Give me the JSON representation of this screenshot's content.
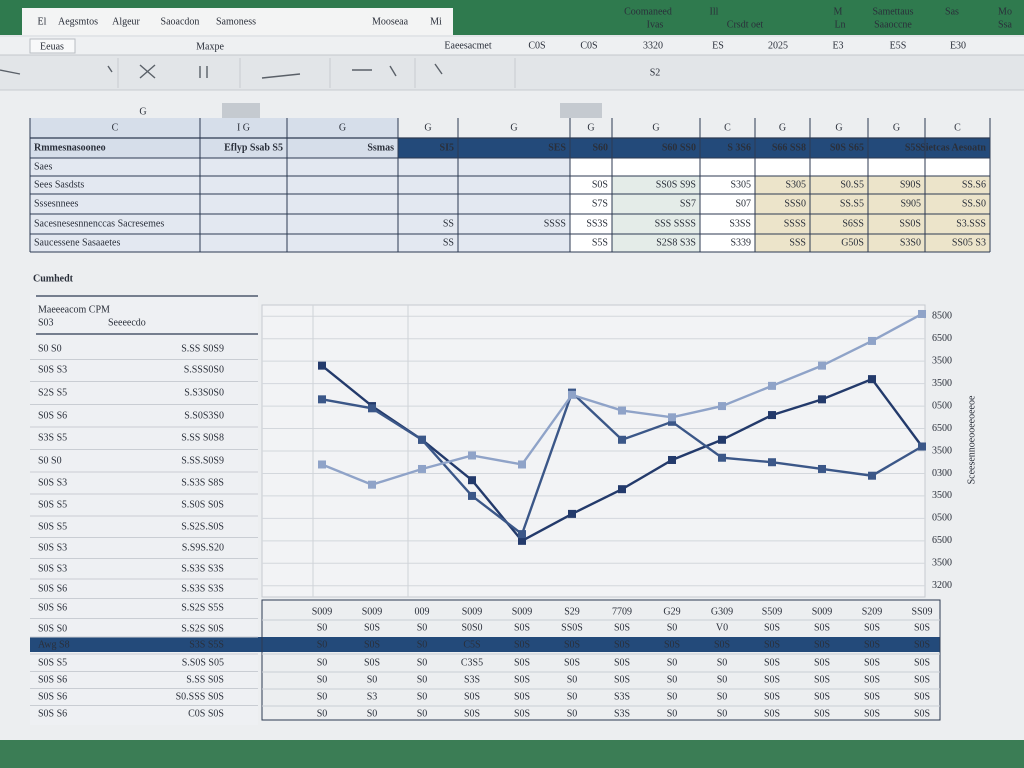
{
  "ribbon": {
    "tabs": [
      "El",
      "Aegsmtos",
      "Algeur",
      "Saoacdon",
      "Samoness",
      "Mooseaa",
      "Mi"
    ],
    "right_top": [
      "Coomaneed",
      "Ill",
      "M",
      "Samettaus",
      "Sas",
      "Mo"
    ],
    "right_bottom": [
      "Ivas",
      "Crsdt oet",
      "Ln",
      "Saaoccne",
      "Ssa"
    ]
  },
  "toolbar": {
    "name_box": "Eeuas",
    "label": "Maxpe",
    "cells": [
      "Eaeesacmet",
      "C0S",
      "C0S",
      "3320",
      "ES",
      "2025",
      "E3",
      "E5S",
      "E30"
    ],
    "hint": "S2"
  },
  "cell_ref": "G",
  "top_table": {
    "columns": [
      "C",
      "I G",
      "G",
      "G",
      "G",
      "G",
      "G",
      "C",
      "G",
      "G",
      "G",
      "C"
    ],
    "header": [
      "Rmmesnasooneo",
      "Eflyp Ssab S5",
      "Ssmas",
      "SI5",
      "SES",
      "S60",
      "S60 SS0",
      "S 3S6",
      "S66 SS8",
      "S0S S65",
      "S5S",
      "Sietcas Aesoatn"
    ],
    "rows": [
      [
        "Saes",
        null,
        null,
        null,
        null,
        null,
        null,
        null,
        null,
        null,
        null,
        null
      ],
      [
        "Sees Sasdsts",
        null,
        null,
        null,
        null,
        "S0S",
        "SS0S S9S",
        "S305",
        "S305",
        "S0.S5",
        "S90S",
        "SS.S6"
      ],
      [
        "Sssesnnees",
        null,
        null,
        null,
        null,
        "S7S",
        "SS7",
        "S07",
        "SSS0",
        "SS.S5",
        "S905",
        "SS.S0"
      ],
      [
        "Sacesnesesnnenccas Sacresemes",
        null,
        null,
        "SS",
        "SSSS",
        "SS3S",
        "SSS SSSS",
        "S3SS",
        "SSSS",
        "S6SS",
        "SS0S",
        "S3.SSS"
      ],
      [
        "Saucessene Sasaaetes",
        null,
        null,
        "SS",
        null,
        "S5S",
        "S2S8 S3S",
        "S339",
        "SSS",
        "G50S",
        "S3S0",
        "SS05 S3"
      ]
    ]
  },
  "left_list": {
    "title": "Maeeeacom CPM",
    "head": [
      "S03",
      "Seeeecdo"
    ],
    "rows": [
      [
        "S0 S0",
        "S.SS S0S9"
      ],
      [
        "S0S S3",
        "S.SSS0S0"
      ],
      [
        "S2S S5",
        "S.S3S0S0"
      ],
      [
        "S0S S6",
        "S.S0S3S0"
      ],
      [
        "S3S S5",
        "S.SS S0S8"
      ],
      [
        "S0 S0",
        "S.SS.S0S9"
      ],
      [
        "S0S S3",
        "S.S3S S8S"
      ],
      [
        "S0S S5",
        "S.S0S S0S"
      ],
      [
        "S0S S5",
        "S.S2S.S0S"
      ],
      [
        "S0S S3",
        "S.S9S.S20"
      ],
      [
        "S0S S3",
        "S.S3S S3S"
      ],
      [
        "S0S S6",
        "S.S3S S3S"
      ],
      [
        "S0S S6",
        "S.S2S S5S"
      ],
      [
        "S0S S0",
        "S.S2S S0S"
      ],
      [
        "Awg S8",
        "S3S S5S"
      ],
      [
        "S0S S5",
        "S.S0S S05"
      ],
      [
        "S0S S6",
        "S.SS S0S"
      ],
      [
        "S0S S6",
        "S0.SSS S0S"
      ],
      [
        "S0S S6",
        "C0S S0S"
      ]
    ]
  },
  "bottom_table": {
    "rows": [
      [
        "S0",
        "S0S",
        "S0",
        "S0S0",
        "S0S",
        "SS0S",
        "S0S",
        "S0",
        "V0",
        "S0S",
        "S0S",
        "S0S",
        "S0S"
      ],
      [
        "S0",
        "S0S",
        "S0",
        "C5S",
        "S0S",
        "S0S",
        "S0S",
        "S0S",
        "S0S",
        "S0S",
        "S0S",
        "S0S",
        "S0S"
      ],
      [
        "S0",
        "S0S",
        "S0",
        "C3S5",
        "S0S",
        "S0S",
        "S0S",
        "S0",
        "S0",
        "S0S",
        "S0S",
        "S0S",
        "S0S"
      ],
      [
        "S0",
        "S0",
        "S0",
        "S3S",
        "S0S",
        "S0",
        "S0S",
        "S0",
        "S0",
        "S0S",
        "S0S",
        "S0S",
        "S0S"
      ],
      [
        "S0",
        "S3",
        "S0",
        "S0S",
        "S0S",
        "S0",
        "S3S",
        "S0",
        "S0",
        "S0S",
        "S0S",
        "S0S",
        "S0S"
      ],
      [
        "S0",
        "S0",
        "S0",
        "S0S",
        "S0S",
        "S0",
        "S3S",
        "S0",
        "S0",
        "S0S",
        "S0S",
        "S0S",
        "S0S"
      ]
    ]
  },
  "chart_data": {
    "type": "line",
    "title": "Cumhedt",
    "ylabel": "Sceesennoeooeeoeeoe",
    "categories": [
      "S009",
      "S009",
      "009",
      "S009",
      "S009",
      "S29",
      "7709",
      "G29",
      "G309",
      "S509",
      "S009",
      "S209",
      "SS09"
    ],
    "series": [
      {
        "name": "A",
        "color": "#233a6b",
        "values": [
          9.8,
          8.0,
          6.5,
          4.7,
          2.0,
          3.2,
          4.3,
          5.6,
          6.5,
          7.6,
          8.3,
          9.2,
          6.2
        ]
      },
      {
        "name": "B",
        "color": "#3b5788",
        "values": [
          8.3,
          7.9,
          6.5,
          4.0,
          2.3,
          8.6,
          6.5,
          7.3,
          5.7,
          5.5,
          5.2,
          4.9,
          6.2
        ]
      },
      {
        "name": "C",
        "color": "#8fa3c8",
        "values": [
          5.4,
          4.5,
          5.2,
          5.8,
          5.4,
          8.5,
          7.8,
          7.5,
          8.0,
          8.9,
          9.8,
          10.9,
          12.1
        ]
      }
    ],
    "ylim": [
      -0.5,
      12.5
    ],
    "yticks": [
      {
        "value": 0,
        "label": "3200"
      },
      {
        "value": 1,
        "label": "3500"
      },
      {
        "value": 2,
        "label": "6500"
      },
      {
        "value": 3,
        "label": "0500"
      },
      {
        "value": 4,
        "label": "3500"
      },
      {
        "value": 5,
        "label": "0300"
      },
      {
        "value": 6,
        "label": "3500"
      },
      {
        "value": 7,
        "label": "6500"
      },
      {
        "value": 8,
        "label": "0500"
      },
      {
        "value": 9,
        "label": "3500"
      },
      {
        "value": 10,
        "label": "3500"
      },
      {
        "value": 11,
        "label": "6500"
      },
      {
        "value": 12,
        "label": "8500"
      }
    ],
    "grid": true
  }
}
